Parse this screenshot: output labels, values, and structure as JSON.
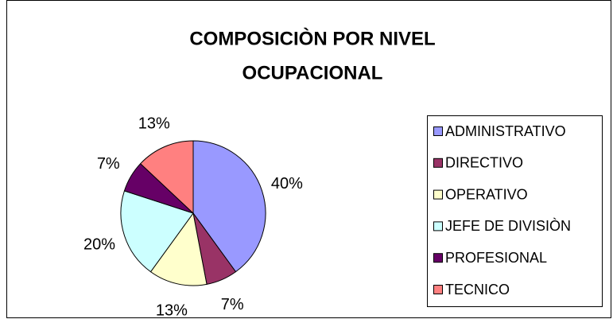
{
  "chart_data": {
    "type": "pie",
    "title": [
      "COMPOSICIÒN POR NIVEL",
      "OCUPACIONAL"
    ],
    "categories": [
      "ADMINISTRATIVO",
      "DIRECTIVO",
      "OPERATIVO",
      "JEFE DE DIVISIÒN",
      "PROFESIONAL",
      "TECNICO"
    ],
    "values": [
      40,
      7,
      13,
      20,
      7,
      13
    ],
    "value_labels": [
      "40%",
      "7%",
      "13%",
      "20%",
      "7%",
      "13%"
    ],
    "colors": [
      "#9999ff",
      "#993366",
      "#ffffcc",
      "#ccffff",
      "#660066",
      "#ff8080"
    ],
    "legend": "right"
  }
}
